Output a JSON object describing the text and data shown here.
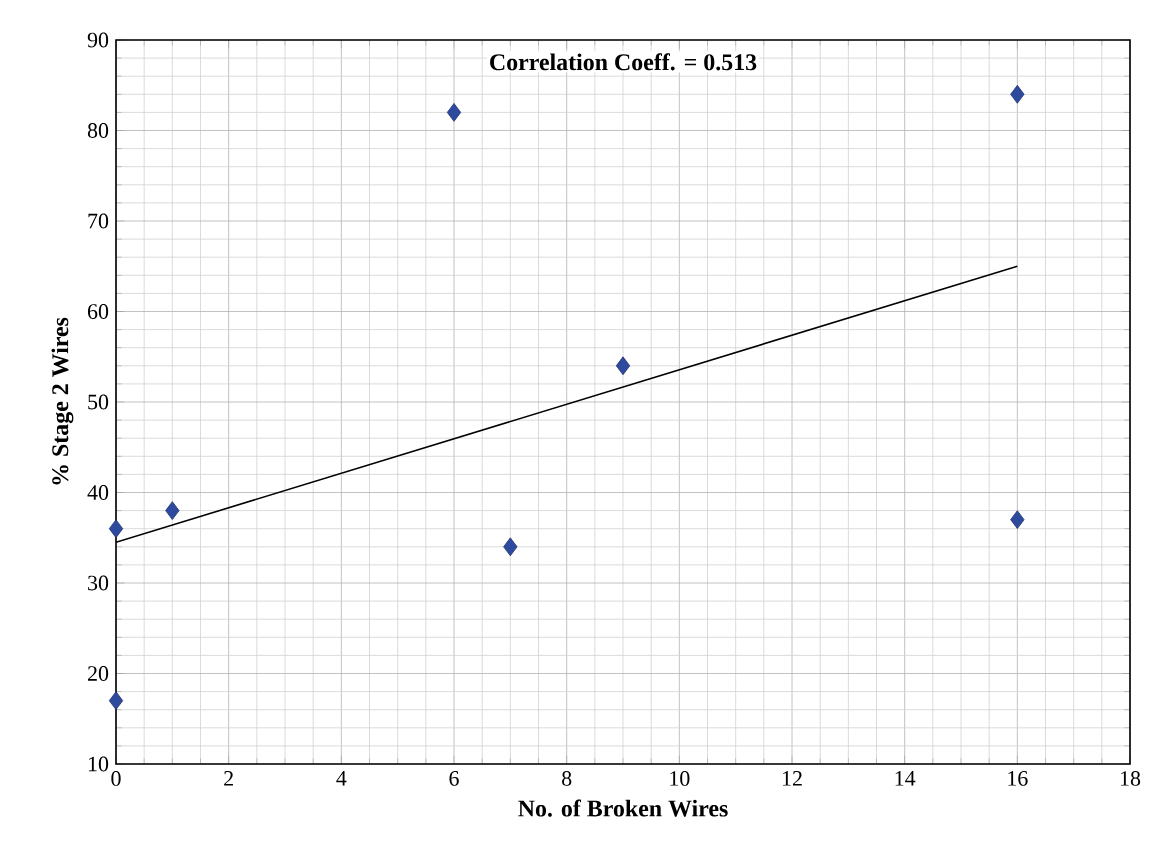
{
  "chart_data": {
    "type": "scatter",
    "xlabel": "No. of Broken Wires",
    "ylabel": "% Stage 2 Wires",
    "annotations": [
      "Correlation Coeff. = 0.513"
    ],
    "xlim": [
      0,
      18
    ],
    "xticks": [
      0,
      2,
      4,
      6,
      8,
      10,
      12,
      14,
      16,
      18
    ],
    "ylim": [
      10,
      90
    ],
    "yticks": [
      10,
      20,
      30,
      40,
      50,
      60,
      70,
      80,
      90
    ],
    "grid": true,
    "marker": "diamond",
    "series": [
      {
        "color": "#2e4a9e",
        "x": [
          0,
          0,
          1,
          6,
          7,
          9,
          16,
          16
        ],
        "values": [
          17,
          36,
          38,
          82,
          34,
          54,
          84,
          37
        ]
      },
      {
        "type": "line",
        "color": "#000000",
        "marker": "none",
        "line_style": "solid",
        "x": [
          0,
          16
        ],
        "values": [
          34.5,
          65
        ]
      }
    ]
  }
}
